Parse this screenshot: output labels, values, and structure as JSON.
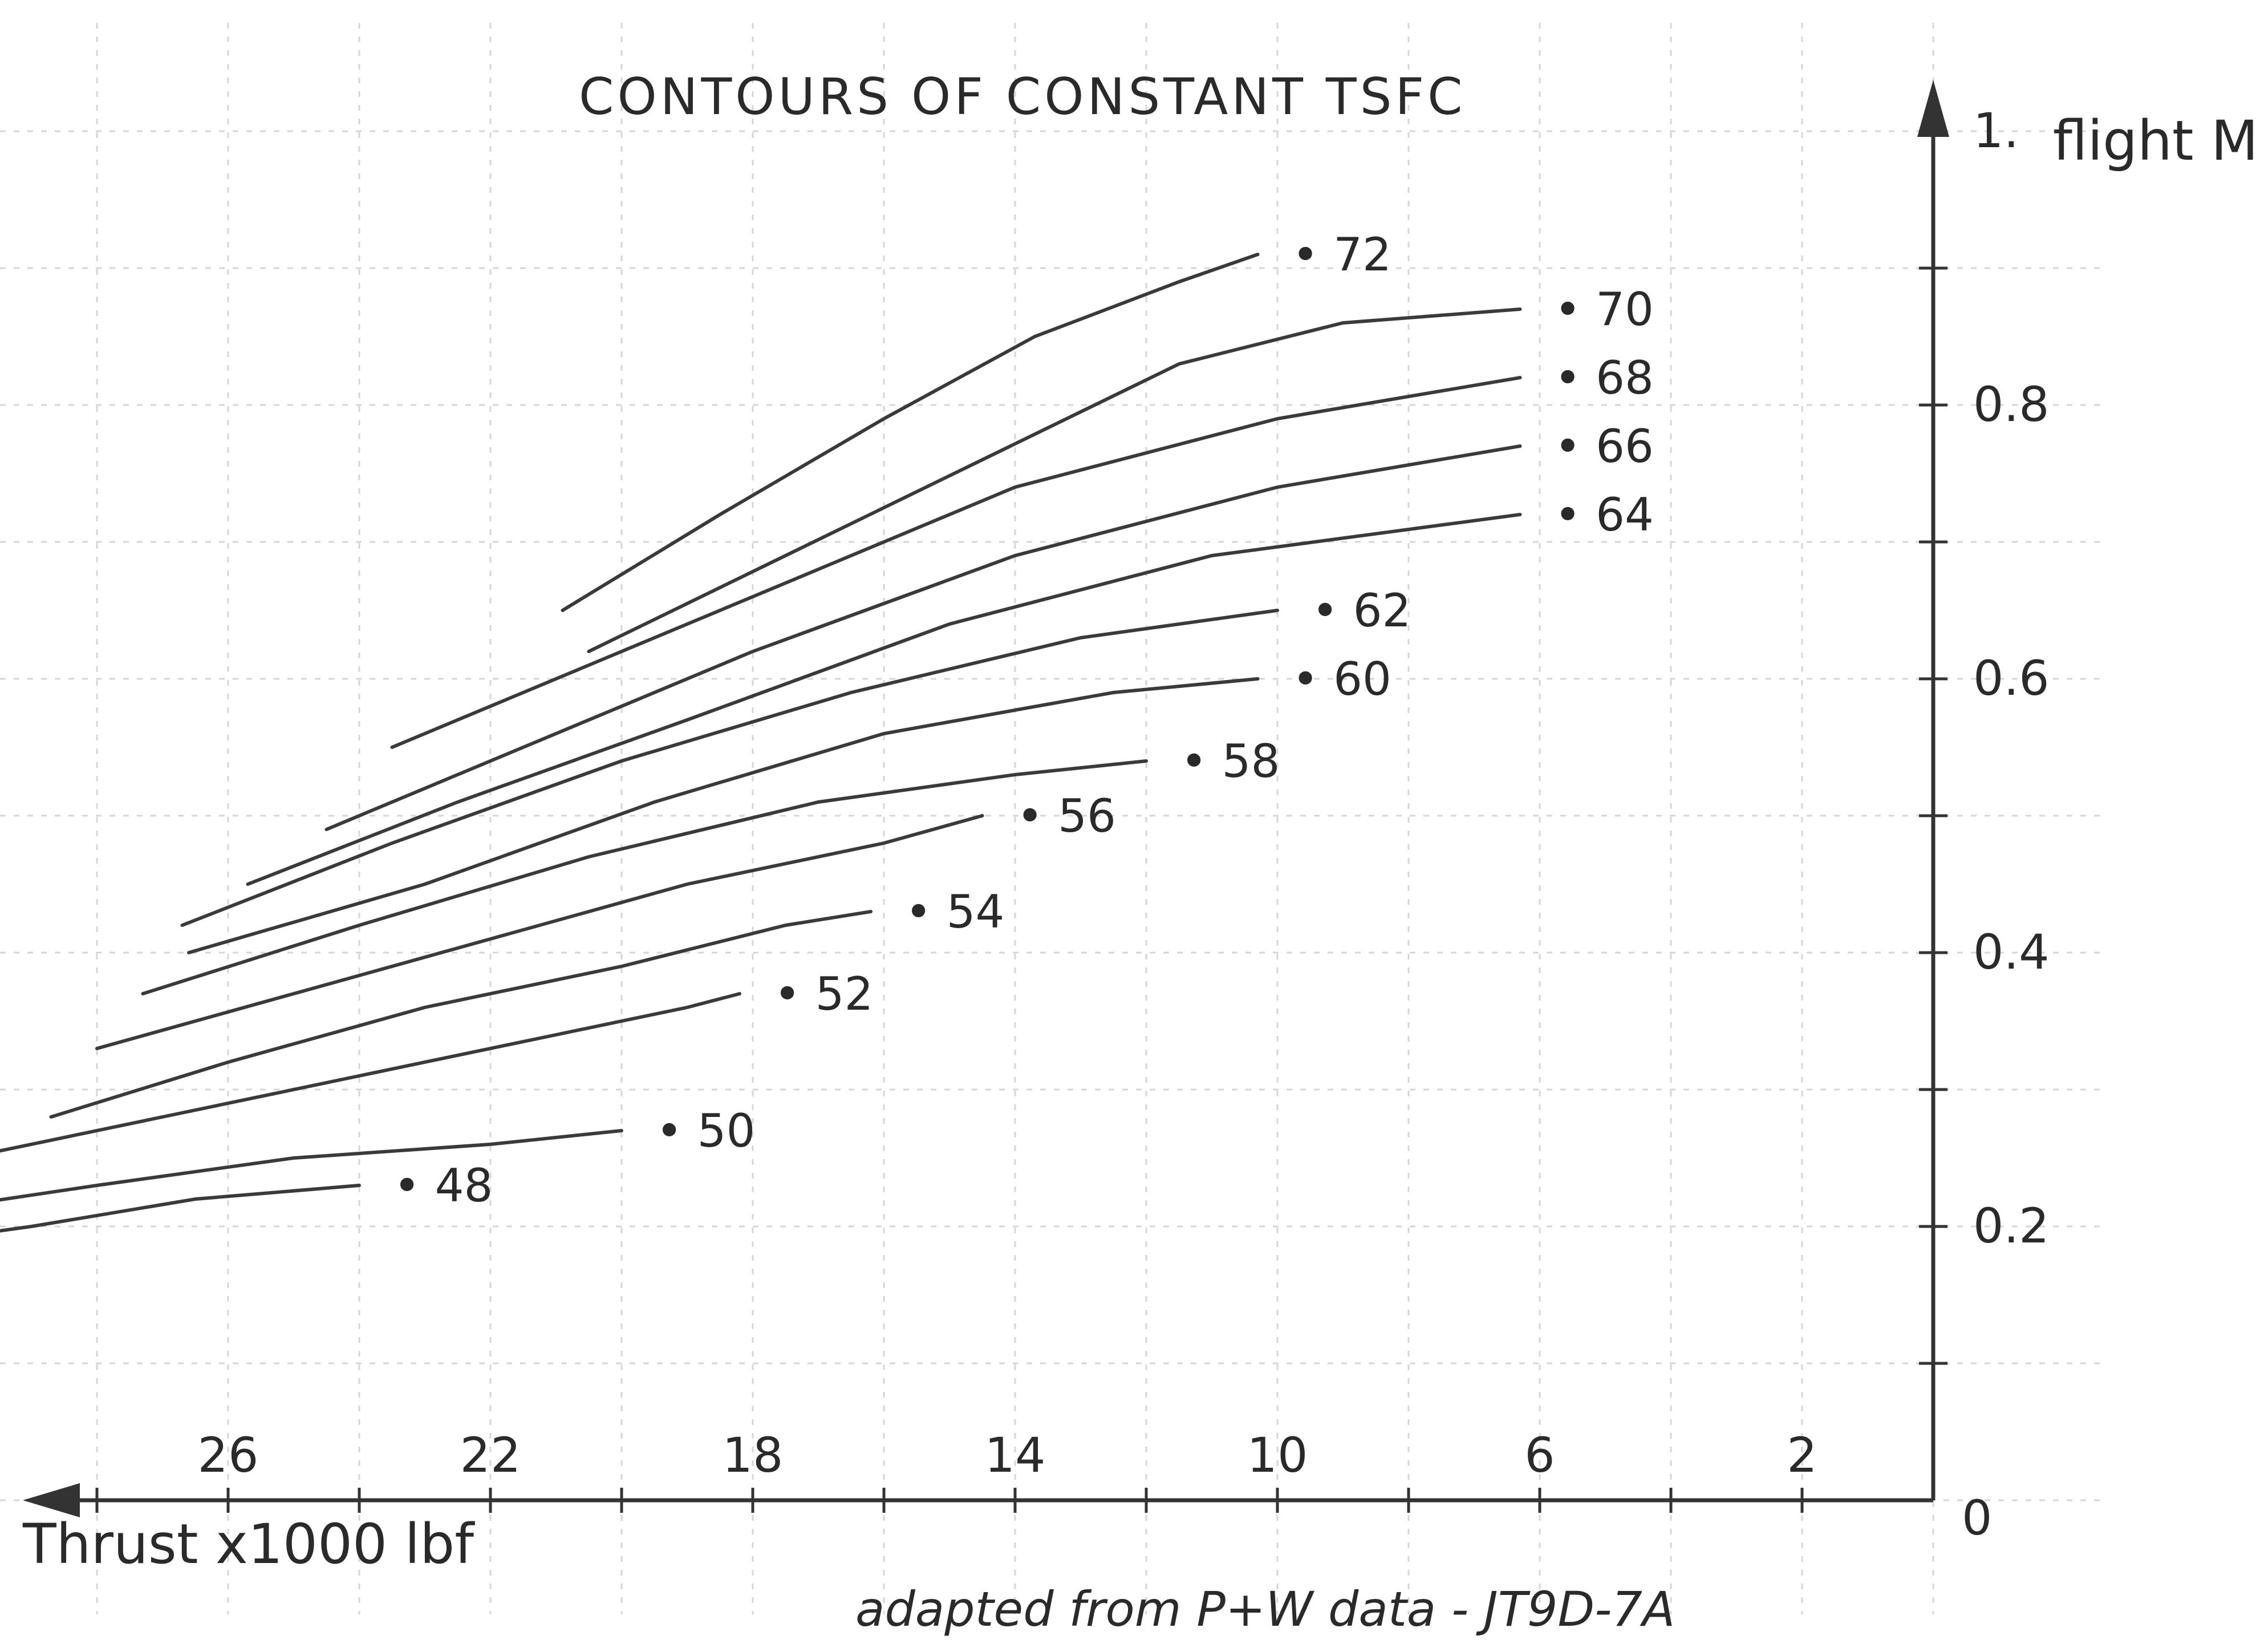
{
  "chart_data": {
    "type": "line",
    "title": "CONTOURS OF CONSTANT TSFC",
    "xlabel": "Thrust x1000 lbf",
    "ylabel": "flight Mach N°",
    "caption": "adapted from P+W data - JT9D-7A",
    "x_reversed": true,
    "xlim": [
      0,
      28
    ],
    "ylim": [
      0,
      1.0
    ],
    "x_ticks": [
      {
        "value": 26,
        "label": "26"
      },
      {
        "value": 22,
        "label": "22"
      },
      {
        "value": 18,
        "label": "18"
      },
      {
        "value": 14,
        "label": "14"
      },
      {
        "value": 10,
        "label": "10"
      },
      {
        "value": 6,
        "label": "6"
      },
      {
        "value": 2,
        "label": "2"
      }
    ],
    "y_ticks": [
      {
        "value": 1.0,
        "label": "1."
      },
      {
        "value": 0.8,
        "label": "0.8"
      },
      {
        "value": 0.6,
        "label": "0.6"
      },
      {
        "value": 0.4,
        "label": "0.4"
      },
      {
        "value": 0.2,
        "label": "0.2"
      }
    ],
    "origin_label": "0",
    "grid": "partial",
    "series": [
      {
        "name": ".72",
        "label": "• 72",
        "x": [
          20.9,
          18.5,
          16.0,
          13.7,
          11.5,
          10.3
        ],
        "y": [
          0.65,
          0.72,
          0.79,
          0.85,
          0.89,
          0.91
        ]
      },
      {
        "name": ".70",
        "label": "• 70",
        "x": [
          20.5,
          17.5,
          14.5,
          11.5,
          9.0,
          6.3
        ],
        "y": [
          0.62,
          0.69,
          0.76,
          0.83,
          0.86,
          0.87
        ]
      },
      {
        "name": ".68",
        "label": "• 68",
        "x": [
          23.5,
          20.5,
          17.0,
          14.0,
          10.0,
          6.3
        ],
        "y": [
          0.55,
          0.61,
          0.68,
          0.74,
          0.79,
          0.82
        ]
      },
      {
        "name": ".66",
        "label": "• 66",
        "x": [
          24.5,
          21.5,
          18.0,
          14.0,
          10.0,
          6.3
        ],
        "y": [
          0.49,
          0.55,
          0.62,
          0.69,
          0.74,
          0.77
        ]
      },
      {
        "name": ".64",
        "label": "• 64",
        "x": [
          25.7,
          22.5,
          19.0,
          15.0,
          11.0,
          6.3
        ],
        "y": [
          0.45,
          0.51,
          0.57,
          0.64,
          0.69,
          0.72
        ]
      },
      {
        "name": ".62",
        "label": "• 62",
        "x": [
          26.7,
          23.5,
          20.0,
          16.5,
          13.0,
          10.0
        ],
        "y": [
          0.42,
          0.48,
          0.54,
          0.59,
          0.63,
          0.65
        ]
      },
      {
        "name": ".60",
        "label": "• 60",
        "x": [
          26.6,
          23.0,
          19.5,
          16.0,
          12.5,
          10.3
        ],
        "y": [
          0.4,
          0.45,
          0.51,
          0.56,
          0.59,
          0.6
        ]
      },
      {
        "name": ".58",
        "label": "• 58",
        "x": [
          27.3,
          24.0,
          20.5,
          17.0,
          14.0,
          12.0
        ],
        "y": [
          0.37,
          0.42,
          0.47,
          0.51,
          0.53,
          0.54
        ]
      },
      {
        "name": ".56",
        "label": "• 56",
        "x": [
          28.0,
          25.0,
          22.0,
          19.0,
          16.0,
          14.5
        ],
        "y": [
          0.33,
          0.37,
          0.41,
          0.45,
          0.48,
          0.5
        ]
      },
      {
        "name": ".54",
        "label": "• 54",
        "x": [
          28.7,
          26.0,
          23.0,
          20.0,
          17.5,
          16.2
        ],
        "y": [
          0.28,
          0.32,
          0.36,
          0.39,
          0.42,
          0.43
        ]
      },
      {
        "name": ".52",
        "label": "• 52",
        "x": [
          30.0,
          27.0,
          24.0,
          21.0,
          19.0,
          18.2
        ],
        "y": [
          0.25,
          0.28,
          0.31,
          0.34,
          0.36,
          0.37
        ]
      },
      {
        "name": ".50",
        "label": "• 50",
        "x": [
          30.8,
          28.0,
          25.0,
          22.0,
          20.0
        ],
        "y": [
          0.21,
          0.23,
          0.25,
          0.26,
          0.27
        ]
      },
      {
        "name": ".48",
        "label": "• 48",
        "x": [
          32.0,
          29.0,
          26.5,
          24.0
        ],
        "y": [
          0.18,
          0.2,
          0.22,
          0.23
        ]
      }
    ]
  }
}
